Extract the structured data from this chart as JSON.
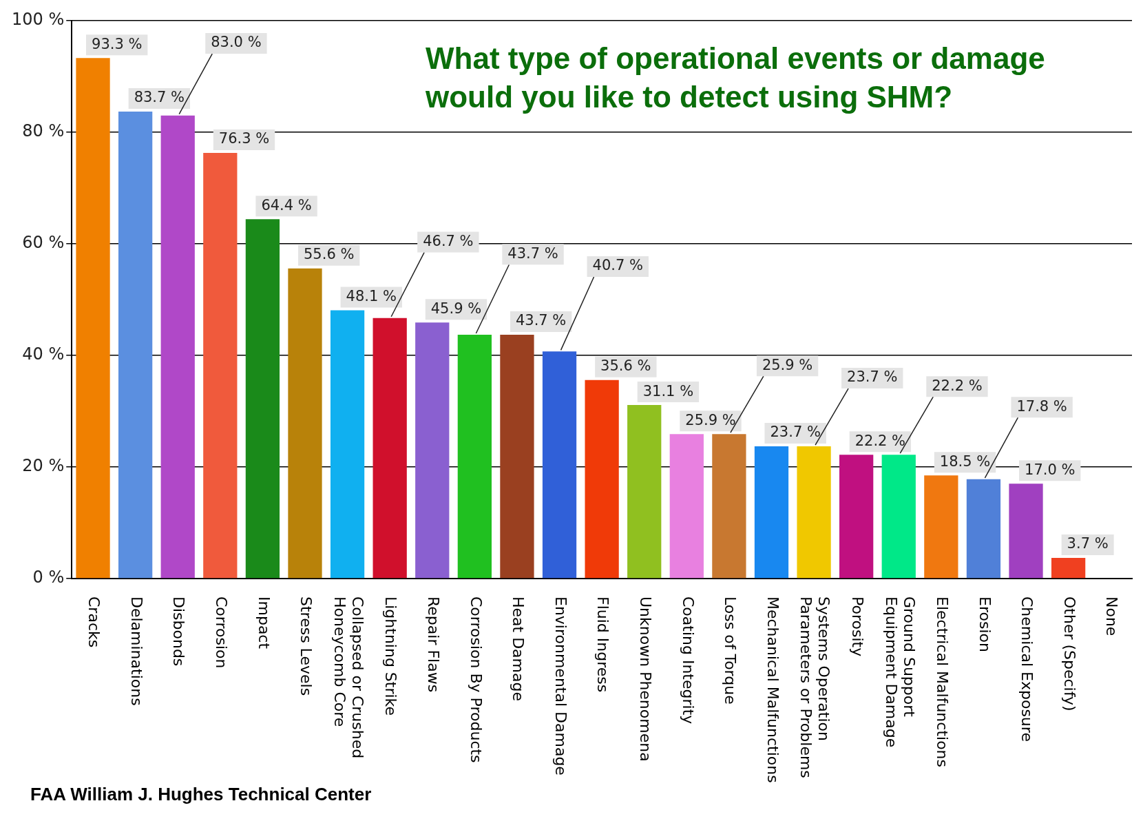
{
  "chart_data": {
    "type": "bar",
    "title": "What type of operational events or damage would you like to detect using SHM?",
    "categories": [
      "Cracks",
      "Delaminations",
      "Disbonds",
      "Corrosion",
      "Impact",
      "Stress Levels",
      "Collapsed or Crushed Honeycomb Core",
      "Lightning Strike",
      "Repair Flaws",
      "Corrosion By Products",
      "Heat Damage",
      "Environmental Damage",
      "Fluid Ingress",
      "Unknown Phenomena",
      "Coating Integrity",
      "Loss of Torque",
      "Mechanical Malfunctions",
      "Systems Operation Parameters or Problems",
      "Porosity",
      "Ground Support Equipment Damage",
      "Electrical Malfunctions",
      "Erosion",
      "Chemical Exposure",
      "Other (Specify)",
      "None"
    ],
    "values": [
      93.3,
      83.7,
      83.0,
      76.3,
      64.4,
      55.6,
      48.1,
      46.7,
      45.9,
      43.7,
      43.7,
      40.7,
      35.6,
      31.1,
      25.9,
      25.9,
      23.7,
      23.7,
      22.2,
      22.2,
      18.5,
      17.8,
      17.0,
      3.7,
      0
    ],
    "value_labels": [
      "93.3 %",
      "83.7 %",
      "83.0 %",
      "76.3 %",
      "64.4 %",
      "55.6 %",
      "48.1 %",
      "46.7 %",
      "45.9 %",
      "43.7 %",
      "43.7 %",
      "40.7 %",
      "35.6 %",
      "31.1 %",
      "25.9 %",
      "25.9 %",
      "23.7 %",
      "23.7 %",
      "22.2 %",
      "22.2 %",
      "18.5 %",
      "17.8 %",
      "17.0 %",
      "3.7 %",
      null
    ],
    "colors": [
      "#f08000",
      "#5b8fe0",
      "#b048c8",
      "#f05a3c",
      "#1a8a1a",
      "#b8820a",
      "#10b0f0",
      "#d0102c",
      "#8a60d0",
      "#20c020",
      "#9a4020",
      "#3060d8",
      "#f03a08",
      "#90c020",
      "#e880e0",
      "#c87830",
      "#1888f0",
      "#f0c800",
      "#c01080",
      "#00e888",
      "#f07810",
      "#5080d8",
      "#a040c0",
      "#f04020",
      "#888888"
    ],
    "ylim": [
      0,
      100
    ],
    "yticks": [
      {
        "value": 0,
        "label": "0 %"
      },
      {
        "value": 20,
        "label": "20 %"
      },
      {
        "value": 40,
        "label": "40 %"
      },
      {
        "value": 60,
        "label": "60 %"
      },
      {
        "value": 80,
        "label": "80 %"
      },
      {
        "value": 100,
        "label": "100 %"
      }
    ],
    "grid": "y",
    "legend": false,
    "annotations": [
      "FAA William J. Hughes Technical Center"
    ]
  }
}
